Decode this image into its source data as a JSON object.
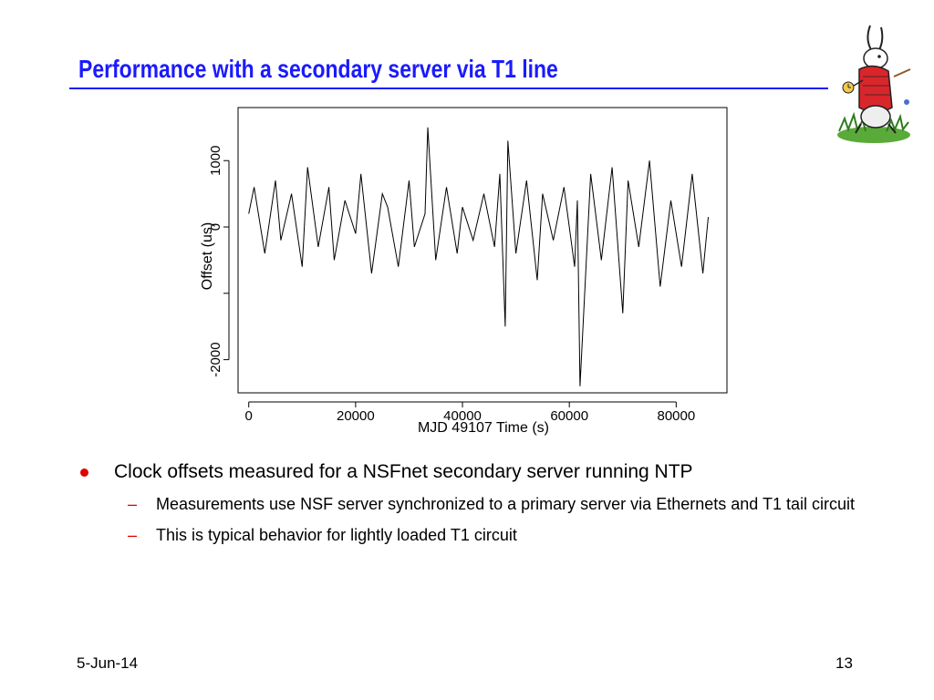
{
  "slide": {
    "title": "Performance with a secondary server via T1 line",
    "date": "5-Jun-14",
    "page_number": "13"
  },
  "colors": {
    "title": "#1a1aff",
    "bullet": "#e00000",
    "trace": "#000000"
  },
  "image": {
    "icon": "white-rabbit-illustration-icon"
  },
  "bullets": [
    {
      "text": "Clock offsets measured for a NSFnet secondary server running NTP",
      "sub": [
        "Measurements use NSF server synchronized to a primary server via Ethernets and T1 tail circuit",
        "This is typical behavior for lightly loaded T1 circuit"
      ]
    }
  ],
  "chart_data": {
    "type": "line",
    "title": "",
    "xlabel": "MJD 49107 Time (s)",
    "ylabel": "Offset (us)",
    "xlim": [
      -2000,
      89500
    ],
    "ylim": [
      -2500,
      1800
    ],
    "x_ticks": [
      0,
      20000,
      40000,
      60000,
      80000
    ],
    "x_tick_labels": [
      "0",
      "20000",
      "40000",
      "60000",
      "80000"
    ],
    "y_ticks": [
      1000,
      0,
      -1000,
      -2000
    ],
    "y_tick_labels": [
      "1000",
      "0",
      "",
      "-2000"
    ],
    "grid": false,
    "legend": "none",
    "series": [
      {
        "x": [
          0,
          1000,
          3000,
          5000,
          6000,
          8000,
          10000,
          11000,
          13000,
          15000,
          16000,
          18000,
          20000,
          21000,
          23000,
          25000,
          26000,
          28000,
          30000,
          31000,
          33000,
          33500,
          35000,
          37000,
          39000,
          40000,
          42000,
          44000,
          46000,
          47000,
          48000,
          48500,
          50000,
          52000,
          54000,
          55000,
          57000,
          59000,
          61000,
          61500,
          62000,
          64000,
          66000,
          68000,
          70000,
          71000,
          73000,
          75000,
          77000,
          79000,
          81000,
          83000,
          85000,
          86000
        ],
        "y": [
          200,
          600,
          -400,
          700,
          -200,
          500,
          -600,
          900,
          -300,
          600,
          -500,
          400,
          -100,
          800,
          -700,
          500,
          300,
          -600,
          700,
          -300,
          200,
          1500,
          -500,
          600,
          -400,
          300,
          -200,
          500,
          -300,
          800,
          -1500,
          1300,
          -400,
          700,
          -800,
          500,
          -200,
          600,
          -600,
          400,
          -2400,
          800,
          -500,
          900,
          -1300,
          700,
          -300,
          1000,
          -900,
          400,
          -600,
          800,
          -700,
          150
        ]
      }
    ]
  }
}
